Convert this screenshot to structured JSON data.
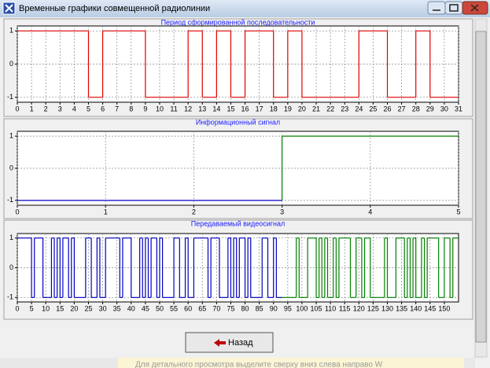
{
  "window": {
    "title": "Временные графики совмещенной радиолинии",
    "button": "Назад",
    "status": "Для детального просмотра выделите сверху вниз слева направо W"
  },
  "chart_data": [
    {
      "type": "line",
      "step": "post",
      "title": "Период сформированной последовательности",
      "xlim": [
        0,
        31
      ],
      "ylim": [
        -1.15,
        1.15
      ],
      "xticks": [
        0,
        1,
        2,
        3,
        4,
        5,
        6,
        7,
        8,
        9,
        10,
        11,
        12,
        13,
        14,
        15,
        16,
        17,
        18,
        19,
        20,
        21,
        22,
        23,
        24,
        25,
        26,
        27,
        28,
        29,
        30,
        31
      ],
      "yticks": [
        -1,
        0,
        1
      ],
      "grid": true,
      "series": [
        {
          "color": "#e00000",
          "x": [
            0,
            1,
            2,
            3,
            4,
            5,
            6,
            7,
            8,
            9,
            10,
            11,
            12,
            13,
            14,
            15,
            16,
            17,
            18,
            19,
            20,
            21,
            22,
            23,
            24,
            25,
            26,
            27,
            28,
            29,
            30
          ],
          "values": [
            1,
            1,
            1,
            1,
            1,
            -1,
            1,
            1,
            1,
            -1,
            -1,
            -1,
            1,
            -1,
            1,
            -1,
            1,
            1,
            -1,
            1,
            -1,
            -1,
            -1,
            -1,
            1,
            1,
            -1,
            -1,
            1,
            -1,
            -1
          ]
        }
      ]
    },
    {
      "type": "line",
      "step": "post",
      "title": "Информационный сигнал",
      "xlim": [
        0,
        5
      ],
      "ylim": [
        -1.15,
        1.15
      ],
      "xticks": [
        0,
        1,
        2,
        3,
        4,
        5
      ],
      "yticks": [
        -1,
        0,
        1
      ],
      "grid": true,
      "series": [
        {
          "color": "#0000c0",
          "x": [
            0,
            1,
            2
          ],
          "values": [
            -1,
            -1,
            -1
          ]
        },
        {
          "color": "#008000",
          "x": [
            3,
            4
          ],
          "values": [
            1,
            1
          ]
        }
      ]
    },
    {
      "type": "line",
      "step": "post",
      "title": "Передаваемый видеосигнал",
      "xlim": [
        0,
        155
      ],
      "ylim": [
        -1.15,
        1.15
      ],
      "xticks": [
        0,
        5,
        10,
        15,
        20,
        25,
        30,
        35,
        40,
        45,
        50,
        55,
        60,
        65,
        70,
        75,
        80,
        85,
        90,
        95,
        100,
        105,
        110,
        115,
        120,
        125,
        130,
        135,
        140,
        145,
        150
      ],
      "yticks": [
        -1,
        0,
        1
      ],
      "grid": true,
      "series": [
        {
          "color": "#0000c0",
          "x": [
            0,
            1,
            2,
            3,
            4,
            5,
            6,
            7,
            8,
            9,
            10,
            11,
            12,
            13,
            14,
            15,
            16,
            17,
            18,
            19,
            20,
            21,
            22,
            23,
            24,
            25,
            26,
            27,
            28,
            29,
            30,
            31,
            32,
            33,
            34,
            35,
            36,
            37,
            38,
            39,
            40,
            41,
            42,
            43,
            44,
            45,
            46,
            47,
            48,
            49,
            50,
            51,
            52,
            53,
            54,
            55,
            56,
            57,
            58,
            59,
            60,
            61,
            62,
            63,
            64,
            65,
            66,
            67,
            68,
            69,
            70,
            71,
            72,
            73,
            74,
            75,
            76,
            77,
            78,
            79,
            80,
            81,
            82,
            83,
            84,
            85,
            86,
            87,
            88,
            89,
            90,
            91,
            92
          ],
          "values": [
            1,
            1,
            1,
            1,
            1,
            -1,
            1,
            1,
            1,
            -1,
            -1,
            -1,
            1,
            -1,
            1,
            -1,
            1,
            1,
            -1,
            1,
            -1,
            -1,
            -1,
            -1,
            1,
            1,
            -1,
            -1,
            1,
            -1,
            -1,
            1,
            1,
            1,
            1,
            1,
            -1,
            1,
            1,
            1,
            -1,
            -1,
            -1,
            1,
            -1,
            1,
            -1,
            1,
            1,
            -1,
            1,
            -1,
            -1,
            -1,
            -1,
            1,
            1,
            -1,
            -1,
            1,
            -1,
            -1,
            1,
            1,
            1,
            1,
            1,
            -1,
            1,
            1,
            1,
            -1,
            -1,
            -1,
            1,
            -1,
            1,
            -1,
            1,
            1,
            -1,
            1,
            -1,
            -1,
            -1,
            -1,
            1,
            1,
            -1,
            -1,
            1,
            -1,
            -1
          ]
        },
        {
          "color": "#008000",
          "x": [
            93,
            94,
            95,
            96,
            97,
            98,
            99,
            100,
            101,
            102,
            103,
            104,
            105,
            106,
            107,
            108,
            109,
            110,
            111,
            112,
            113,
            114,
            115,
            116,
            117,
            118,
            119,
            120,
            121,
            122,
            123,
            124,
            125,
            126,
            127,
            128,
            129,
            130,
            131,
            132,
            133,
            134,
            135,
            136,
            137,
            138,
            139,
            140,
            141,
            142,
            143,
            144,
            145,
            146,
            147,
            148,
            149,
            150,
            151,
            152,
            153,
            154
          ],
          "values": [
            -1,
            -1,
            -1,
            -1,
            -1,
            1,
            -1,
            -1,
            -1,
            1,
            1,
            1,
            -1,
            1,
            -1,
            1,
            -1,
            -1,
            1,
            -1,
            1,
            1,
            1,
            1,
            -1,
            -1,
            1,
            1,
            -1,
            1,
            1,
            -1,
            -1,
            -1,
            -1,
            -1,
            1,
            -1,
            -1,
            -1,
            1,
            1,
            1,
            -1,
            1,
            -1,
            1,
            -1,
            -1,
            1,
            -1,
            1,
            1,
            1,
            1,
            -1,
            -1,
            1,
            1,
            -1,
            1,
            1
          ]
        }
      ]
    }
  ]
}
